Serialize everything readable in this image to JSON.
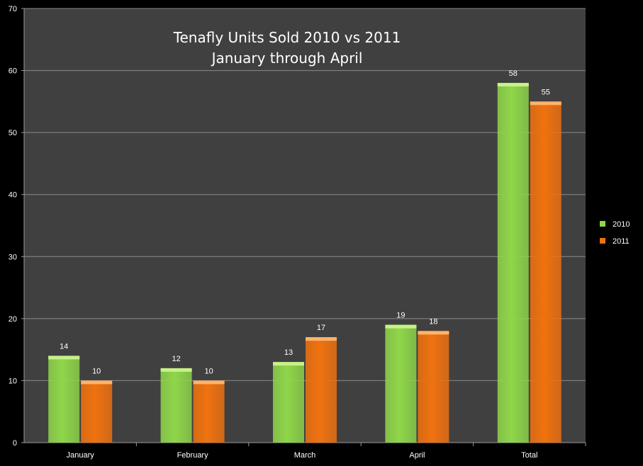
{
  "chart_data": {
    "type": "bar",
    "title": "Tenafly  Units Sold  2010 vs 2011",
    "subtitle": "January through April",
    "categories": [
      "January",
      "February",
      "March",
      "April",
      "Total"
    ],
    "series": [
      {
        "name": "2010",
        "values": [
          14,
          12,
          13,
          19,
          58
        ],
        "color": "#8fd64a",
        "top_color": "#c9f089"
      },
      {
        "name": "2011",
        "values": [
          10,
          10,
          17,
          18,
          55
        ],
        "color": "#f0720f",
        "top_color": "#ffb36b"
      }
    ],
    "yticks": [
      "0",
      "10",
      "20",
      "30",
      "40",
      "50",
      "60",
      "70"
    ],
    "ylim": [
      0,
      70
    ],
    "xlabel": "",
    "ylabel": "",
    "grid": true,
    "legend_position": "right",
    "plot_background": "#404040",
    "grid_color": "#8a8a8a"
  }
}
